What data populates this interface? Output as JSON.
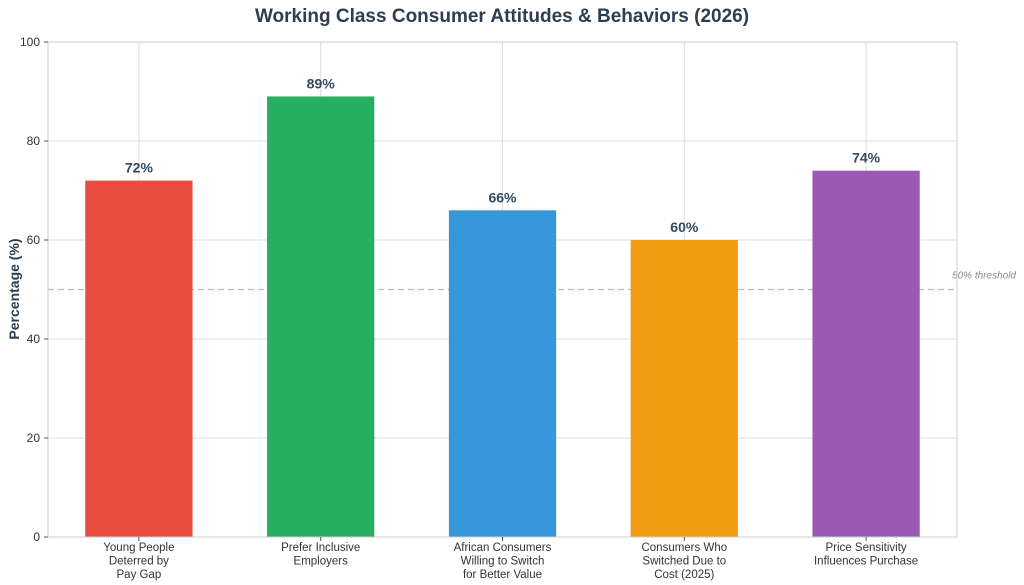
{
  "chart_data": {
    "type": "bar",
    "title": "Working Class Consumer Attitudes & Behaviors (2026)",
    "xlabel": "",
    "ylabel": "Percentage (%)",
    "ylim": [
      0,
      100
    ],
    "yticks": [
      0,
      20,
      40,
      60,
      80,
      100
    ],
    "grid": true,
    "categories": [
      [
        "Young People",
        "Deterred by",
        "Pay Gap"
      ],
      [
        "Prefer Inclusive",
        "Employers"
      ],
      [
        "African Consumers",
        "Willing to Switch",
        "for Better Value"
      ],
      [
        "Consumers Who",
        "Switched Due to",
        "Cost (2025)"
      ],
      [
        "Price Sensitivity",
        "Influences Purchase"
      ]
    ],
    "values": [
      72,
      89,
      66,
      60,
      74
    ],
    "data_labels": [
      "72%",
      "89%",
      "66%",
      "60%",
      "74%"
    ],
    "colors": [
      "#e74c3c",
      "#27ae60",
      "#3498db",
      "#f39c12",
      "#9b59b6"
    ],
    "reference_line": {
      "value": 50,
      "label": "50% threshold",
      "color": "#bbbbbb"
    }
  }
}
